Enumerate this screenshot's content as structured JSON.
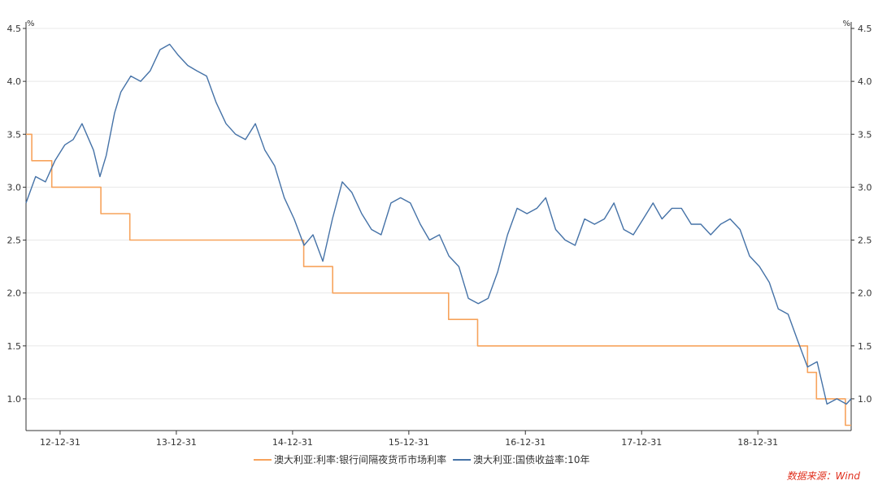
{
  "chart_data": {
    "type": "line",
    "title": "",
    "y_unit_left": "%",
    "y_unit_right": "%",
    "ylim": [
      0.7,
      4.5
    ],
    "yticks": [
      1.0,
      1.5,
      2.0,
      2.5,
      3.0,
      3.5,
      4.0,
      4.5
    ],
    "ytick_labels": [
      "1.0",
      "1.5",
      "2.0",
      "2.5",
      "3.0",
      "3.5",
      "4.0",
      "4.5"
    ],
    "xlim": [
      "2012-09-15",
      "2019-10-20"
    ],
    "xticks": [
      "2012-12-31",
      "2013-12-31",
      "2014-12-31",
      "2015-12-31",
      "2016-12-31",
      "2017-12-31",
      "2018-12-31"
    ],
    "xtick_labels": [
      "12-12-31",
      "13-12-31",
      "14-12-31",
      "15-12-31",
      "16-12-31",
      "17-12-31",
      "18-12-31"
    ],
    "grid": "horizontal",
    "legend_position": "bottom",
    "source": "数据来源：Wind",
    "series": [
      {
        "name": "澳大利亚:利率:银行间隔夜货币市场利率",
        "color": "#f7a35c",
        "step": true,
        "points": [
          [
            "2012-09-15",
            3.5
          ],
          [
            "2012-10-03",
            3.25
          ],
          [
            "2012-12-05",
            3.0
          ],
          [
            "2013-05-08",
            2.75
          ],
          [
            "2013-08-07",
            2.5
          ],
          [
            "2015-02-04",
            2.25
          ],
          [
            "2015-05-06",
            2.0
          ],
          [
            "2016-05-04",
            1.75
          ],
          [
            "2016-08-03",
            1.5
          ],
          [
            "2019-06-05",
            1.25
          ],
          [
            "2019-07-03",
            1.0
          ],
          [
            "2019-10-02",
            0.75
          ],
          [
            "2019-10-20",
            0.75
          ]
        ]
      },
      {
        "name": "澳大利亚:国债收益率:10年",
        "color": "#4572a7",
        "step": false,
        "points": [
          [
            "2012-09-15",
            2.85
          ],
          [
            "2012-10-15",
            3.1
          ],
          [
            "2012-11-15",
            3.05
          ],
          [
            "2012-12-15",
            3.25
          ],
          [
            "2013-01-15",
            3.4
          ],
          [
            "2013-02-10",
            3.45
          ],
          [
            "2013-03-10",
            3.6
          ],
          [
            "2013-04-15",
            3.35
          ],
          [
            "2013-05-05",
            3.1
          ],
          [
            "2013-05-25",
            3.3
          ],
          [
            "2013-06-20",
            3.7
          ],
          [
            "2013-07-10",
            3.9
          ],
          [
            "2013-08-10",
            4.05
          ],
          [
            "2013-09-10",
            4.0
          ],
          [
            "2013-10-10",
            4.1
          ],
          [
            "2013-11-10",
            4.3
          ],
          [
            "2013-12-10",
            4.35
          ],
          [
            "2014-01-05",
            4.25
          ],
          [
            "2014-02-05",
            4.15
          ],
          [
            "2014-03-05",
            4.1
          ],
          [
            "2014-04-05",
            4.05
          ],
          [
            "2014-05-05",
            3.8
          ],
          [
            "2014-06-05",
            3.6
          ],
          [
            "2014-07-05",
            3.5
          ],
          [
            "2014-08-05",
            3.45
          ],
          [
            "2014-09-05",
            3.6
          ],
          [
            "2014-10-05",
            3.35
          ],
          [
            "2014-11-05",
            3.2
          ],
          [
            "2014-12-05",
            2.9
          ],
          [
            "2015-01-05",
            2.7
          ],
          [
            "2015-02-05",
            2.45
          ],
          [
            "2015-03-05",
            2.55
          ],
          [
            "2015-04-05",
            2.3
          ],
          [
            "2015-05-05",
            2.7
          ],
          [
            "2015-06-05",
            3.05
          ],
          [
            "2015-07-05",
            2.95
          ],
          [
            "2015-08-05",
            2.75
          ],
          [
            "2015-09-05",
            2.6
          ],
          [
            "2015-10-05",
            2.55
          ],
          [
            "2015-11-05",
            2.85
          ],
          [
            "2015-12-05",
            2.9
          ],
          [
            "2016-01-05",
            2.85
          ],
          [
            "2016-02-05",
            2.65
          ],
          [
            "2016-03-05",
            2.5
          ],
          [
            "2016-04-05",
            2.55
          ],
          [
            "2016-05-05",
            2.35
          ],
          [
            "2016-06-05",
            2.25
          ],
          [
            "2016-07-05",
            1.95
          ],
          [
            "2016-08-05",
            1.9
          ],
          [
            "2016-09-05",
            1.95
          ],
          [
            "2016-10-05",
            2.2
          ],
          [
            "2016-11-05",
            2.55
          ],
          [
            "2016-12-05",
            2.8
          ],
          [
            "2017-01-05",
            2.75
          ],
          [
            "2017-02-05",
            2.8
          ],
          [
            "2017-03-05",
            2.9
          ],
          [
            "2017-04-05",
            2.6
          ],
          [
            "2017-05-05",
            2.5
          ],
          [
            "2017-06-05",
            2.45
          ],
          [
            "2017-07-05",
            2.7
          ],
          [
            "2017-08-05",
            2.65
          ],
          [
            "2017-09-05",
            2.7
          ],
          [
            "2017-10-05",
            2.85
          ],
          [
            "2017-11-05",
            2.6
          ],
          [
            "2017-12-05",
            2.55
          ],
          [
            "2018-01-05",
            2.7
          ],
          [
            "2018-02-05",
            2.85
          ],
          [
            "2018-03-05",
            2.7
          ],
          [
            "2018-04-05",
            2.8
          ],
          [
            "2018-05-05",
            2.8
          ],
          [
            "2018-06-05",
            2.65
          ],
          [
            "2018-07-05",
            2.65
          ],
          [
            "2018-08-05",
            2.55
          ],
          [
            "2018-09-05",
            2.65
          ],
          [
            "2018-10-05",
            2.7
          ],
          [
            "2018-11-05",
            2.6
          ],
          [
            "2018-12-05",
            2.35
          ],
          [
            "2019-01-05",
            2.25
          ],
          [
            "2019-02-05",
            2.1
          ],
          [
            "2019-03-05",
            1.85
          ],
          [
            "2019-04-05",
            1.8
          ],
          [
            "2019-05-05",
            1.55
          ],
          [
            "2019-06-05",
            1.3
          ],
          [
            "2019-07-05",
            1.35
          ],
          [
            "2019-08-05",
            0.95
          ],
          [
            "2019-09-05",
            1.0
          ],
          [
            "2019-10-05",
            0.95
          ],
          [
            "2019-10-20",
            1.0
          ]
        ]
      }
    ]
  }
}
